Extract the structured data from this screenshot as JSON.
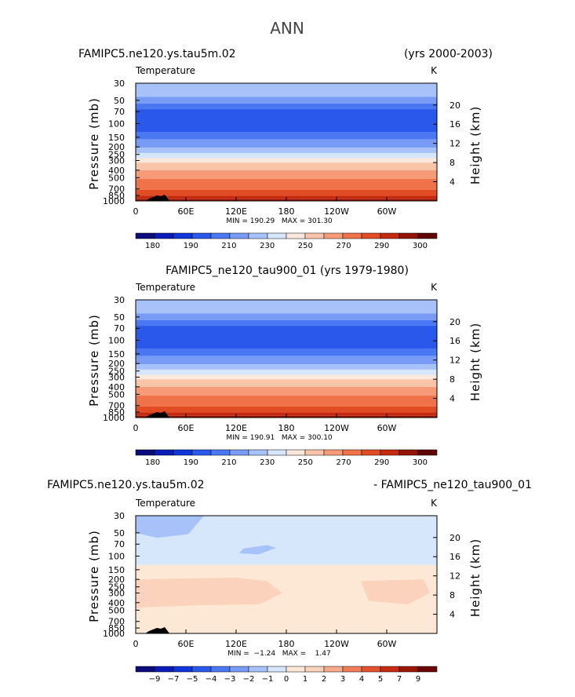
{
  "figure": {
    "title": "ANN"
  },
  "palettes": {
    "temperature": [
      "#0c0c7c",
      "#0a1cb8",
      "#0f36d8",
      "#2a58ea",
      "#4a78f2",
      "#789cf6",
      "#a6c2f9",
      "#d6e6fb",
      "#fbe8dc",
      "#f9c4a8",
      "#f79a78",
      "#f07248",
      "#e24c25",
      "#c42a10",
      "#931406",
      "#5c0502"
    ],
    "difference": [
      "#0c0c7c",
      "#0a1cb8",
      "#0f36d8",
      "#2a58ea",
      "#4a78f2",
      "#789cf6",
      "#a6c2f9",
      "#d6e6fb",
      "#fde7d5",
      "#fbd2bc",
      "#f8ab8c",
      "#f27e5a",
      "#e45230",
      "#c82c12",
      "#9c1606",
      "#6a0602"
    ]
  },
  "chart_data": [
    {
      "type": "contour",
      "title_left": "FAMIPC5.ne120.ys.tau5m.02",
      "title_right": "(yrs 2000-2003)",
      "title_center": "",
      "variable_label": "Temperature",
      "units": "K",
      "ylabel_left": "Pressure  (mb)",
      "ylabel_right": "Height  (km)",
      "pressure_ticks": [
        30,
        50,
        70,
        100,
        150,
        200,
        250,
        300,
        400,
        500,
        700,
        850,
        1000
      ],
      "height_ticks": [
        4,
        8,
        12,
        16,
        20
      ],
      "lon_ticks": [
        "0",
        "60E",
        "120E",
        "180",
        "120W",
        "60W"
      ],
      "stats": "MIN = 190.29   MAX = 301.30",
      "palette": "temperature",
      "colorbar_labels": [
        "180",
        "190",
        "210",
        "230",
        "250",
        "270",
        "290",
        "300"
      ],
      "levels": [
        {
          "p": 30,
          "c": 6
        },
        {
          "p": 45,
          "c": 5
        },
        {
          "p": 55,
          "c": 4
        },
        {
          "p": 65,
          "c": 3
        },
        {
          "p": 130,
          "c": 4
        },
        {
          "p": 160,
          "c": 5
        },
        {
          "p": 205,
          "c": 6
        },
        {
          "p": 240,
          "c": 7
        },
        {
          "p": 280,
          "c": 8
        },
        {
          "p": 320,
          "c": 9
        },
        {
          "p": 400,
          "c": 10
        },
        {
          "p": 520,
          "c": 11
        },
        {
          "p": 720,
          "c": 12
        },
        {
          "p": 860,
          "c": 13
        },
        {
          "p": 950,
          "c": 14
        }
      ],
      "topography": true
    },
    {
      "type": "contour",
      "title_left": "",
      "title_right": "",
      "title_center": "FAMIPC5_ne120_tau900_01 (yrs 1979-1980)",
      "variable_label": "Temperature",
      "units": "K",
      "ylabel_left": "Pressure  (mb)",
      "ylabel_right": "Height  (km)",
      "pressure_ticks": [
        30,
        50,
        70,
        100,
        150,
        200,
        250,
        300,
        400,
        500,
        700,
        850,
        1000
      ],
      "height_ticks": [
        4,
        8,
        12,
        16,
        20
      ],
      "lon_ticks": [
        "0",
        "60E",
        "120E",
        "180",
        "120W",
        "60W"
      ],
      "stats": "MIN = 190.91   MAX = 300.10",
      "palette": "temperature",
      "colorbar_labels": [
        "180",
        "190",
        "210",
        "230",
        "250",
        "270",
        "290",
        "300"
      ],
      "levels": [
        {
          "p": 30,
          "c": 6
        },
        {
          "p": 45,
          "c": 5
        },
        {
          "p": 55,
          "c": 4
        },
        {
          "p": 65,
          "c": 3
        },
        {
          "p": 130,
          "c": 4
        },
        {
          "p": 160,
          "c": 5
        },
        {
          "p": 205,
          "c": 6
        },
        {
          "p": 240,
          "c": 7
        },
        {
          "p": 280,
          "c": 8
        },
        {
          "p": 320,
          "c": 9
        },
        {
          "p": 400,
          "c": 10
        },
        {
          "p": 520,
          "c": 11
        },
        {
          "p": 720,
          "c": 12
        },
        {
          "p": 860,
          "c": 13
        },
        {
          "p": 950,
          "c": 14
        }
      ],
      "topography": true
    },
    {
      "type": "contour",
      "title_left": "FAMIPC5.ne120.ys.tau5m.02",
      "title_right": "- FAMIPC5_ne120_tau900_01",
      "title_center": "",
      "variable_label": "Temperature",
      "units": "K",
      "ylabel_left": "Pressure  (mb)",
      "ylabel_right": "Height  (km)",
      "pressure_ticks": [
        30,
        50,
        70,
        100,
        150,
        200,
        250,
        300,
        400,
        500,
        700,
        850,
        1000
      ],
      "height_ticks": [
        4,
        8,
        12,
        16,
        20
      ],
      "lon_ticks": [
        "0",
        "60E",
        "120E",
        "180",
        "120W",
        "60W"
      ],
      "stats": "MIN =  −1.24   MAX =    1.47",
      "palette": "difference",
      "colorbar_labels": [
        "−9",
        "−7",
        "−5",
        "−4",
        "−3",
        "−2",
        "−1",
        "0",
        "1",
        "2",
        "3",
        "4",
        "5",
        "7",
        "9"
      ],
      "levels": [
        {
          "p": 30,
          "c": 7
        },
        {
          "p": 130,
          "c": 8
        }
      ],
      "topography": true
    }
  ]
}
